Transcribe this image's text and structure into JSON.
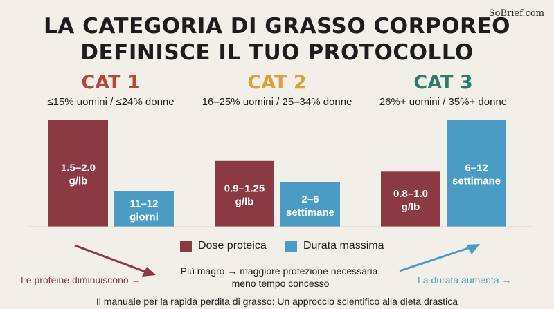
{
  "brand": "SoBrief.com",
  "title_line1": "LA CATEGORIA DI GRASSO CORPOREO",
  "title_line2": "DEFINISCE IL TUO PROTOCOLLO",
  "colors": {
    "protein": "#8b3a44",
    "duration": "#4a9cc4",
    "cat1": "#b5463a",
    "cat2": "#d9a13a",
    "cat3": "#2e7d6b"
  },
  "categories": [
    {
      "name": "CAT 1",
      "subtitle": "≤15% uomini / ≤24% donne"
    },
    {
      "name": "CAT 2",
      "subtitle": "16–25% uomini / 25–34% donne"
    },
    {
      "name": "CAT 3",
      "subtitle": "26%+ uomini / 35%+ donne"
    }
  ],
  "chart_data": {
    "type": "bar",
    "categories": [
      "CAT 1",
      "CAT 2",
      "CAT 3"
    ],
    "series": [
      {
        "name": "Dose proteica",
        "values": [
          1.75,
          1.075,
          0.9
        ],
        "labels": [
          "1.5–2.0 g/lb",
          "0.9–1.25 g/lb",
          "0.8–1.0 g/lb"
        ]
      },
      {
        "name": "Durata massima",
        "values": [
          11.5,
          4,
          9
        ],
        "labels": [
          "11–12 giorni",
          "2–6 settimane",
          "6–12 settimane"
        ]
      }
    ]
  },
  "legend": {
    "protein": "Dose proteica",
    "duration": "Durata massima"
  },
  "left_note": "Le proteine diminuiscono →",
  "right_note": "La durata aumenta →",
  "center_note_line1": "Più magro → maggiore protezione necessaria,",
  "center_note_line2": "meno tempo concesso",
  "footer": "Il manuale per la rapida perdita di grasso: Un approccio scientifico alla dieta drastica"
}
